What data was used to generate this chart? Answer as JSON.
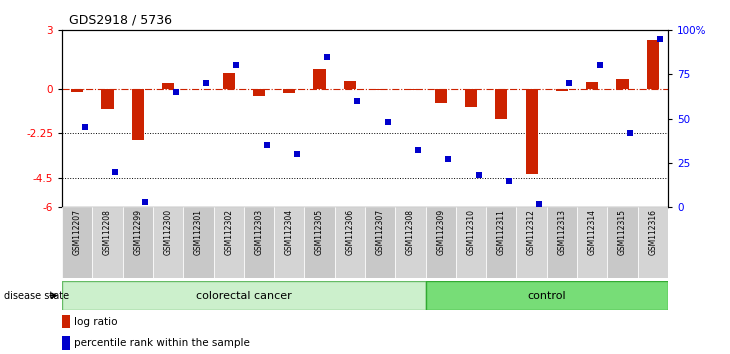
{
  "title": "GDS2918 / 5736",
  "samples": [
    "GSM112207",
    "GSM112208",
    "GSM112299",
    "GSM112300",
    "GSM112301",
    "GSM112302",
    "GSM112303",
    "GSM112304",
    "GSM112305",
    "GSM112306",
    "GSM112307",
    "GSM112308",
    "GSM112309",
    "GSM112310",
    "GSM112311",
    "GSM112312",
    "GSM112313",
    "GSM112314",
    "GSM112315",
    "GSM112316"
  ],
  "log_ratio": [
    -0.15,
    -1.0,
    -2.6,
    0.3,
    0.0,
    0.8,
    -0.35,
    -0.2,
    1.0,
    0.4,
    -0.05,
    -0.05,
    -0.7,
    -0.9,
    -1.5,
    -4.3,
    -0.1,
    0.35,
    0.5,
    2.5
  ],
  "percentile_rank": [
    45,
    20,
    3,
    65,
    70,
    80,
    35,
    30,
    85,
    60,
    48,
    32,
    27,
    18,
    15,
    2,
    70,
    80,
    42,
    95
  ],
  "ylim_left": [
    -6,
    3
  ],
  "ylim_right": [
    0,
    100
  ],
  "dotted_lines": [
    -2.25,
    -4.5
  ],
  "n_colorectal": 12,
  "n_control": 8,
  "colorectal_color": "#ccf0cc",
  "control_color": "#77dd77",
  "bar_color_red": "#cc2200",
  "bar_color_blue": "#0000cc",
  "yticks_left": [
    3,
    0,
    -2.25,
    -4.5,
    -6
  ],
  "yticks_right": [
    100,
    75,
    50,
    25,
    0
  ],
  "disease_label": "disease state",
  "group_labels": [
    "colorectal cancer",
    "control"
  ],
  "legend_items": [
    "log ratio",
    "percentile rank within the sample"
  ]
}
